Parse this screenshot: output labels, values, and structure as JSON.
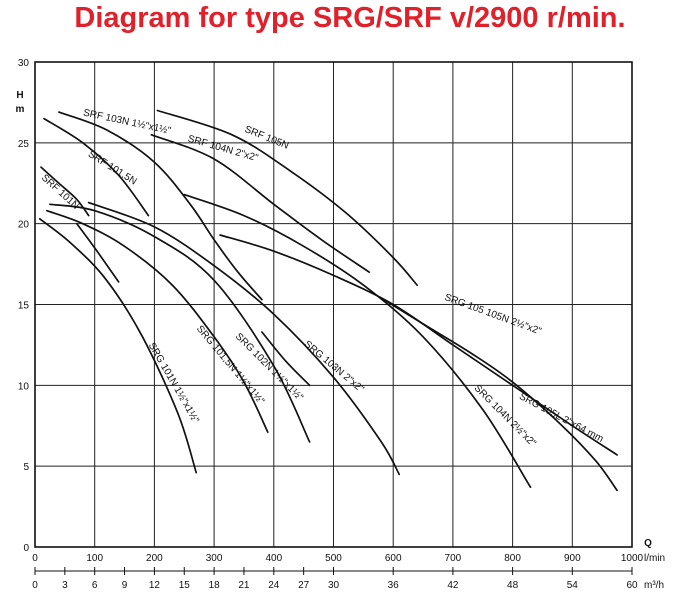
{
  "title": "Diagram for type SRG/SRF v/2900 r/min.",
  "chart_data": {
    "type": "line",
    "title": "Diagram for type SRG/SRF v/2900 r/min.",
    "ylabel_top": "H",
    "ylabel_unit": "m",
    "xlabel_letter": "Q",
    "x_unit_primary": "l/min",
    "x_unit_secondary": "m³/h",
    "xlim": [
      0,
      1000
    ],
    "ylim": [
      0,
      30
    ],
    "grid": true,
    "y_ticks": [
      "0",
      "5",
      "10",
      "15",
      "20",
      "25",
      "30"
    ],
    "x_ticks_primary": [
      "0",
      "100",
      "200",
      "300",
      "400",
      "500",
      "600",
      "700",
      "800",
      "900",
      "1000"
    ],
    "x_ticks_secondary": [
      {
        "q": 0,
        "label": "0"
      },
      {
        "q": 50,
        "label": "3"
      },
      {
        "q": 100,
        "label": "6"
      },
      {
        "q": 150,
        "label": "9"
      },
      {
        "q": 200,
        "label": "12"
      },
      {
        "q": 250,
        "label": "15"
      },
      {
        "q": 300,
        "label": "18"
      },
      {
        "q": 350,
        "label": "21"
      },
      {
        "q": 400,
        "label": "24"
      },
      {
        "q": 450,
        "label": "27"
      },
      {
        "q": 500,
        "label": "30"
      },
      {
        "q": 600,
        "label": "36"
      },
      {
        "q": 700,
        "label": "42"
      },
      {
        "q": 800,
        "label": "48"
      },
      {
        "q": 900,
        "label": "54"
      },
      {
        "q": 1000,
        "label": "60"
      }
    ],
    "series": [
      {
        "name": "SRF 101N",
        "x": [
          10,
          40,
          70,
          90
        ],
        "y": [
          23.5,
          22.5,
          21.5,
          20.5
        ]
      },
      {
        "name": "SRF 101,5N",
        "x": [
          15,
          80,
          140,
          190
        ],
        "y": [
          26.5,
          25,
          23,
          20.5
        ]
      },
      {
        "name": "SRF 103N 1½\"x1½\"",
        "x": [
          40,
          120,
          200,
          260,
          300,
          340,
          380
        ],
        "y": [
          26.9,
          25.8,
          23.8,
          21.2,
          19,
          17,
          15.3
        ]
      },
      {
        "name": "SRF 104N 2\"x2\"",
        "x": [
          195,
          300,
          400,
          480,
          560
        ],
        "y": [
          25.5,
          24,
          21.2,
          19,
          17
        ]
      },
      {
        "name": "SRF 105N",
        "x": [
          205,
          330,
          430,
          520,
          600,
          640
        ],
        "y": [
          27,
          25.5,
          23.2,
          20.7,
          17.9,
          16.2
        ]
      },
      {
        "name": "SRG 101N 1½\"x1½\"",
        "x": [
          8,
          60,
          120,
          180,
          240,
          270
        ],
        "y": [
          20.3,
          18.8,
          16.5,
          13,
          8.2,
          4.6
        ]
      },
      {
        "name": "SRG 101,5N 1½\"x1½\"",
        "x": [
          20,
          80,
          150,
          230,
          300,
          350,
          390
        ],
        "y": [
          20.8,
          20,
          18.6,
          16.2,
          13,
          10.2,
          7.1
        ]
      },
      {
        "name": "SRG 101,5N (branch)",
        "x": [
          70,
          100,
          140
        ],
        "y": [
          20,
          18.5,
          16.4
        ]
      },
      {
        "name": "SRG 102N 1½\"x1½\"",
        "x": [
          25,
          100,
          200,
          300,
          400,
          460
        ],
        "y": [
          21.2,
          20.8,
          19.2,
          16.5,
          11.2,
          6.5
        ]
      },
      {
        "name": "SRG 102N (branch)",
        "x": [
          380,
          420,
          460
        ],
        "y": [
          13.3,
          11.5,
          10
        ]
      },
      {
        "name": "SRG 103N 2\"x2\"",
        "x": [
          90,
          200,
          300,
          400,
          500,
          580,
          610
        ],
        "y": [
          21.3,
          19.8,
          17.4,
          14.4,
          10.5,
          6.5,
          4.5
        ]
      },
      {
        "name": "SRG 104N 2½\"x2\"",
        "x": [
          250,
          350,
          450,
          550,
          650,
          750,
          830
        ],
        "y": [
          21.8,
          20.5,
          18.6,
          16.2,
          13,
          8.5,
          3.7
        ]
      },
      {
        "name": "SRG 105 105N 2½\"x2\"",
        "x": [
          310,
          400,
          500,
          600,
          700,
          800,
          900,
          975
        ],
        "y": [
          19.3,
          18.3,
          16.8,
          15,
          12.5,
          10,
          7.5,
          5.7
        ]
      },
      {
        "name": "SRG 105L 2\"x64 mm",
        "x": [
          580,
          650,
          730,
          800,
          880,
          940,
          975
        ],
        "y": [
          15.4,
          13.8,
          12,
          10.2,
          7.6,
          5.3,
          3.5
        ]
      }
    ],
    "curve_labels": [
      {
        "text": "SRF 101N",
        "q": 10,
        "h": 22.8,
        "angle": 42
      },
      {
        "text": "SRF 101,5N",
        "q": 88,
        "h": 24.2,
        "angle": 32
      },
      {
        "text": "SRF 103N 1½\"x1½\"",
        "q": 80,
        "h": 26.7,
        "angle": 12
      },
      {
        "text": "SRF 104N 2\"x2\"",
        "q": 255,
        "h": 25.1,
        "angle": 16
      },
      {
        "text": "SRF 105N",
        "q": 350,
        "h": 25.7,
        "angle": 22
      },
      {
        "text": "SRG 101N 1½\"x1½\"",
        "q": 190,
        "h": 12.5,
        "angle": 60
      },
      {
        "text": "SRG 101,5N 1½\"x1½\"",
        "q": 270,
        "h": 13.5,
        "angle": 50
      },
      {
        "text": "SRG 102N 1½\"x1½\"",
        "q": 335,
        "h": 13,
        "angle": 45
      },
      {
        "text": "SRG 103N 2\"x2\"",
        "q": 450,
        "h": 12.5,
        "angle": 40
      },
      {
        "text": "SRG 104N 2½\"x2\"",
        "q": 735,
        "h": 9.8,
        "angle": 45
      },
      {
        "text": "SRG 105 105N 2½\"x2\"",
        "q": 685,
        "h": 15.3,
        "angle": 20
      },
      {
        "text": "SRG 105L 2\"x64 mm",
        "q": 810,
        "h": 9.2,
        "angle": 28
      }
    ]
  }
}
